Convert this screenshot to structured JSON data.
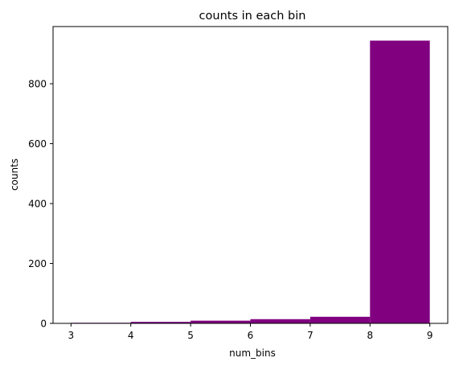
{
  "chart_data": {
    "type": "bar",
    "title": "counts in each bin",
    "xlabel": "num_bins",
    "ylabel": "counts",
    "bins": [
      {
        "start": 3,
        "end": 4,
        "value": 2
      },
      {
        "start": 4,
        "end": 5,
        "value": 5
      },
      {
        "start": 5,
        "end": 6,
        "value": 9
      },
      {
        "start": 6,
        "end": 7,
        "value": 14
      },
      {
        "start": 7,
        "end": 8,
        "value": 22
      },
      {
        "start": 8,
        "end": 9,
        "value": 944
      }
    ],
    "xlim": [
      2.7,
      9.3
    ],
    "ylim": [
      0,
      991
    ],
    "x_ticks": [
      3,
      4,
      5,
      6,
      7,
      8,
      9
    ],
    "x_tick_labels": [
      "3",
      "4",
      "5",
      "6",
      "7",
      "8",
      "9"
    ],
    "y_ticks": [
      0,
      200,
      400,
      600,
      800
    ],
    "y_tick_labels": [
      "0",
      "200",
      "400",
      "600",
      "800"
    ],
    "bar_color": "#800080",
    "grid": false,
    "legend": "none"
  }
}
